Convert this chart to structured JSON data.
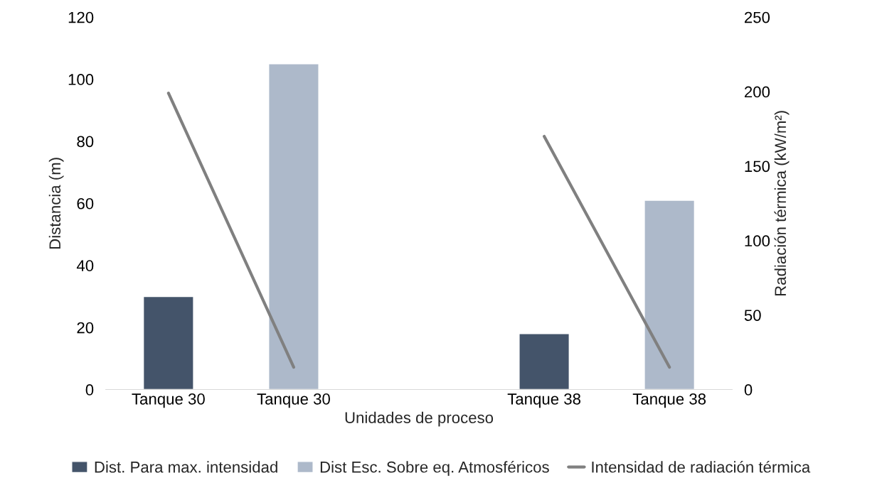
{
  "chart_data": {
    "type": "bar",
    "xlabel": "Unidades de proceso",
    "ylabel": "Distancia (m)",
    "y2label": "Radiación térmica (kW/m²)",
    "categories": [
      "Tanque 30",
      "Tanque 30",
      null,
      "Tanque 38",
      "Tanque 38"
    ],
    "series": [
      {
        "name": "Dist. Para max. intensidad",
        "color": "#44546a",
        "values": [
          30,
          null,
          null,
          18,
          null
        ]
      },
      {
        "name": "Dist Esc. Sobre eq. Atmosféricos",
        "color": "#adb9ca",
        "values": [
          null,
          105,
          null,
          null,
          61
        ]
      },
      {
        "name": "Intensidad de radiación térmica",
        "type": "line",
        "axis": "y2",
        "color": "#808080",
        "values": [
          199,
          15,
          null,
          170,
          15
        ]
      }
    ],
    "ylim": [
      0,
      120
    ],
    "yticks": [
      0,
      20,
      40,
      60,
      80,
      100,
      120
    ],
    "y2lim": [
      0,
      250
    ],
    "y2ticks": [
      0,
      50,
      100,
      150,
      200,
      250
    ],
    "grid": false,
    "legend": "bottom"
  }
}
